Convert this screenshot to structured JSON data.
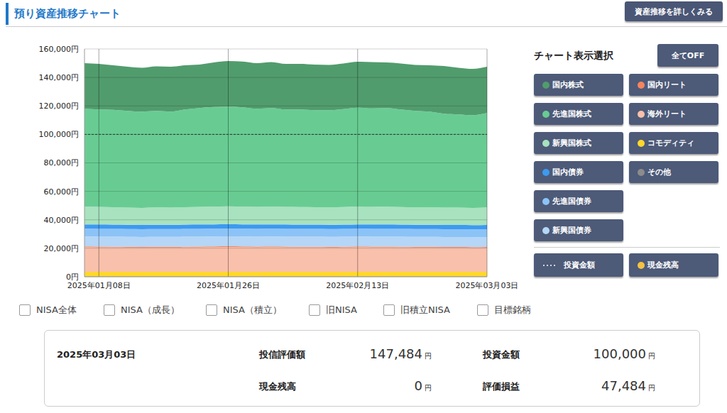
{
  "header": {
    "title": "預り資産推移チャート",
    "button": "資産推移を詳しくみる"
  },
  "chart_data": {
    "type": "area",
    "stacked": true,
    "grid": true,
    "categories": [
      null,
      "2025年01月08日",
      null,
      null,
      null,
      null,
      null,
      null,
      null,
      null,
      "2025年01月26日",
      null,
      null,
      null,
      null,
      null,
      null,
      null,
      null,
      "2025年02月13日",
      null,
      null,
      null,
      null,
      null,
      null,
      null,
      null,
      "2025年03月03日"
    ],
    "ylim": [
      0,
      160000
    ],
    "yticks": [
      {
        "value": 0,
        "label": "0円"
      },
      {
        "value": 20000,
        "label": "20,000円"
      },
      {
        "value": 40000,
        "label": "40,000円"
      },
      {
        "value": 60000,
        "label": "60,000円"
      },
      {
        "value": 80000,
        "label": "80,000円"
      },
      {
        "value": 100000,
        "label": "100,000円"
      },
      {
        "value": 120000,
        "label": "120,000円"
      },
      {
        "value": 140000,
        "label": "140,000円"
      },
      {
        "value": 160000,
        "label": "160,000円"
      }
    ],
    "series": [
      {
        "name": "国内株式",
        "color": "#519c6d",
        "values": [
          32000,
          32000,
          31300,
          31000,
          30800,
          31300,
          31500,
          31000,
          30500,
          31300,
          32000,
          32200,
          32000,
          32300,
          32000,
          32000,
          32000,
          31800,
          32000,
          32200,
          32600,
          32000,
          32300,
          32300,
          32500,
          33500,
          32800,
          32500,
          32484
        ]
      },
      {
        "name": "先進国株式",
        "color": "#68cc92",
        "values": [
          68700,
          68400,
          68300,
          67900,
          67600,
          67800,
          67400,
          68600,
          69400,
          69900,
          70000,
          69700,
          68900,
          69200,
          68400,
          68500,
          68100,
          68200,
          68800,
          69500,
          69100,
          69300,
          68500,
          67700,
          67200,
          65900,
          65400,
          65100,
          66300
        ]
      },
      {
        "name": "新興国株式",
        "color": "#a8e2bf",
        "values": [
          12500,
          12400,
          12300,
          12100,
          12000,
          12200,
          12100,
          12300,
          12400,
          12500,
          12600,
          12500,
          12400,
          12500,
          12400,
          12400,
          12300,
          12300,
          12400,
          12500,
          12400,
          12500,
          12400,
          12300,
          12300,
          12200,
          12200,
          12100,
          12300
        ]
      },
      {
        "name": "国内債券",
        "color": "#3d9af0",
        "values": [
          3000,
          3000,
          3000,
          3000,
          3000,
          3000,
          3000,
          3000,
          3000,
          3000,
          3000,
          3000,
          3000,
          3000,
          3000,
          3000,
          3000,
          3000,
          3000,
          3000,
          3000,
          3000,
          3000,
          3000,
          3000,
          3000,
          3000,
          3000,
          3000
        ]
      },
      {
        "name": "先進国債券",
        "color": "#8cc3f7",
        "values": [
          5500,
          5500,
          5500,
          5500,
          5500,
          5500,
          5500,
          5500,
          5500,
          5500,
          5500,
          5500,
          5500,
          5500,
          5500,
          5500,
          5500,
          5500,
          5500,
          5500,
          5500,
          5500,
          5500,
          5500,
          5500,
          5500,
          5500,
          5500,
          5500
        ]
      },
      {
        "name": "新興国債券",
        "color": "#b5d6f6",
        "values": [
          7000,
          7000,
          7000,
          7000,
          7000,
          7000,
          7000,
          7000,
          7000,
          7000,
          7000,
          7000,
          7000,
          7000,
          7000,
          7000,
          7000,
          7000,
          7000,
          7000,
          7000,
          7000,
          7000,
          7000,
          7000,
          7000,
          7000,
          7000,
          7000
        ]
      },
      {
        "name": "国内リート",
        "color": "#f4845f",
        "values": [
          600,
          600,
          600,
          600,
          600,
          600,
          600,
          600,
          600,
          600,
          600,
          600,
          600,
          600,
          600,
          600,
          600,
          600,
          600,
          600,
          600,
          600,
          600,
          600,
          600,
          600,
          600,
          600,
          600
        ]
      },
      {
        "name": "海外リート",
        "color": "#f9c0ab",
        "values": [
          17200,
          17100,
          17000,
          16900,
          16800,
          16900,
          16900,
          17000,
          17100,
          17200,
          17300,
          17200,
          17100,
          17200,
          17100,
          17000,
          17000,
          16900,
          17000,
          17200,
          17100,
          17100,
          17000,
          16900,
          16900,
          16800,
          16800,
          16700,
          16800
        ]
      },
      {
        "name": "コモディティ",
        "color": "#ffd82b",
        "values": [
          3500,
          3500,
          3500,
          3500,
          3500,
          3500,
          3500,
          3500,
          3500,
          3500,
          3500,
          3500,
          3500,
          3500,
          3500,
          3500,
          3500,
          3500,
          3500,
          3500,
          3500,
          3500,
          3500,
          3500,
          3500,
          3500,
          3500,
          3500,
          3500
        ]
      },
      {
        "name": "その他",
        "color": "#8c8c8c",
        "values": [
          0,
          0,
          0,
          0,
          0,
          0,
          0,
          0,
          0,
          0,
          0,
          0,
          0,
          0,
          0,
          0,
          0,
          0,
          0,
          0,
          0,
          0,
          0,
          0,
          0,
          0,
          0,
          0,
          0
        ]
      },
      {
        "name": "投資金額",
        "type": "line",
        "line_style": "dashed",
        "color": "#333333",
        "values": [
          100000,
          100000,
          100000,
          100000,
          100000,
          100000,
          100000,
          100000,
          100000,
          100000,
          100000,
          100000,
          100000,
          100000,
          100000,
          100000,
          100000,
          100000,
          100000,
          100000,
          100000,
          100000,
          100000,
          100000,
          100000,
          100000,
          100000,
          100000,
          100000
        ]
      }
    ]
  },
  "panel": {
    "title": "チャート表示選択",
    "all_off": "全てOFF",
    "extra": [
      {
        "name": "現金残高",
        "color": "#f5c242"
      }
    ]
  },
  "filters": [
    "NISA全体",
    "NISA（成長）",
    "NISA（積立）",
    "旧NISA",
    "旧積立NISA",
    "目標銘柄"
  ],
  "summary": {
    "date": "2025年03月03日",
    "items": [
      {
        "label": "投信評価額",
        "value": "147,484",
        "unit": "円"
      },
      {
        "label": "投資金額",
        "value": "100,000",
        "unit": "円"
      },
      {
        "label": "現金残高",
        "value": "0",
        "unit": "円"
      },
      {
        "label": "評価損益",
        "value": "47,484",
        "unit": "円"
      }
    ]
  }
}
